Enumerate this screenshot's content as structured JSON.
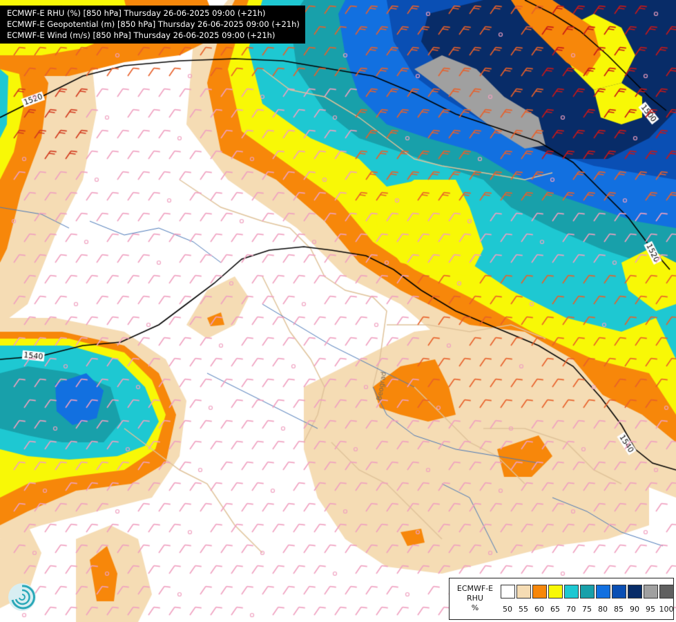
{
  "titles": [
    "ECMWF-E RHU (%) [850 hPa] Thursday 26-06-2025 09:00 (+21h)",
    "ECMWF-E Geopotential (m) [850 hPa] Thursday 26-06-2025 09:00 (+21h)",
    "ECMWF-E Wind (m/s) [850 hPa] Thursday 26-06-2025 09:00 (+21h)"
  ],
  "legend": {
    "model": "ECMWF-E",
    "variable": "RHU",
    "unit": "%",
    "ticks": [
      "50",
      "55",
      "60",
      "65",
      "70",
      "75",
      "80",
      "85",
      "90",
      "95",
      "100"
    ],
    "colors": [
      "#ffffff",
      "#f5dcb4",
      "#f7870a",
      "#f8f806",
      "#1ec8d2",
      "#18a0aa",
      "#1270e0",
      "#0a4fb4",
      "#082c68",
      "#a0a0a0",
      "#606060"
    ]
  },
  "contours": {
    "labels": [
      "1520",
      "1500",
      "1520",
      "1540",
      "1540"
    ]
  },
  "map_labels": {
    "city": "Beograd"
  },
  "colors": {
    "border": "#e0c39a",
    "river": "#4a78b8",
    "contour": "#000000"
  },
  "icons": {
    "logo": "swirl-logo-icon"
  }
}
